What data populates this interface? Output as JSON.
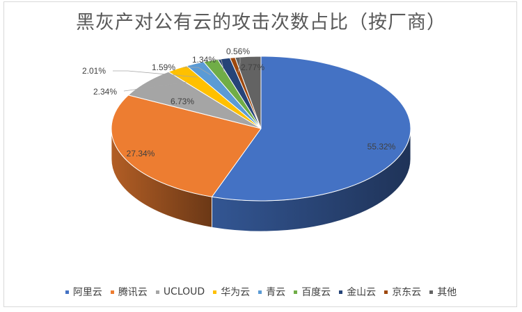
{
  "chart_data": {
    "type": "pie",
    "title": "黑灰产对公有云的攻击次数占比（按厂商）",
    "legend_position": "bottom",
    "slices": [
      {
        "name": "阿里云",
        "value": 55.32,
        "label": "55.32%",
        "color": "#4472c4"
      },
      {
        "name": "腾讯云",
        "value": 27.34,
        "label": "27.34%",
        "color": "#ed7d31"
      },
      {
        "name": "UCLOUD",
        "value": 6.73,
        "label": "6.73%",
        "color": "#a5a5a5"
      },
      {
        "name": "华为云",
        "value": 2.34,
        "label": "2.34%",
        "color": "#ffc000"
      },
      {
        "name": "青云",
        "value": 2.01,
        "label": "2.01%",
        "color": "#5b9bd5"
      },
      {
        "name": "百度云",
        "value": 1.59,
        "label": "1.59%",
        "color": "#70ad47"
      },
      {
        "name": "金山云",
        "value": 1.34,
        "label": "1.34%",
        "color": "#264478"
      },
      {
        "name": "京东云",
        "value": 0.56,
        "label": "0.56%",
        "color": "#9e480e"
      },
      {
        "name": "其他",
        "value": 2.77,
        "label": "2.77%",
        "color": "#636363"
      }
    ]
  }
}
